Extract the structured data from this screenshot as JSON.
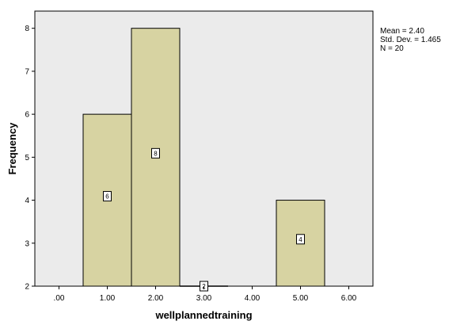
{
  "chart_data": {
    "type": "bar",
    "title": "",
    "xlabel": "wellplannedtraining",
    "ylabel": "Frequency",
    "x_ticks": [
      ".00",
      "1.00",
      "2.00",
      "3.00",
      "4.00",
      "5.00",
      "6.00"
    ],
    "y_ticks": [
      "2",
      "3",
      "4",
      "5",
      "6",
      "7",
      "8"
    ],
    "xlim": [
      -0.5,
      6.5
    ],
    "ylim": [
      2,
      8.4
    ],
    "bin_width": 1,
    "bars": [
      {
        "x": 1,
        "value": 6,
        "label": "6"
      },
      {
        "x": 2,
        "value": 8,
        "label": "8"
      },
      {
        "x": 3,
        "value": 2,
        "label": "2"
      },
      {
        "x": 5,
        "value": 4,
        "label": "4"
      }
    ],
    "grid": false,
    "colors": {
      "bar_fill": "#d7d3a2",
      "bar_stroke": "#000000",
      "plot_bg": "#ebebeb"
    }
  },
  "stats": {
    "mean": "Mean = 2.40",
    "std_dev": "Std. Dev. = 1.465",
    "n": "N = 20"
  }
}
